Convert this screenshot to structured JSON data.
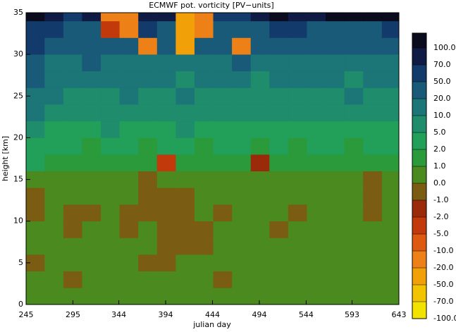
{
  "chart_data": {
    "type": "contour",
    "title": "ECMWF pot. vorticity [PV−units]",
    "xlabel": "julian day",
    "ylabel": "height [km]",
    "xlim": [
      245,
      643
    ],
    "ylim": [
      0,
      35
    ],
    "xticks": [
      245,
      295,
      344,
      394,
      444,
      494,
      544,
      593,
      643
    ],
    "yticks": [
      0,
      5,
      10,
      15,
      20,
      25,
      30,
      35
    ],
    "x": [
      255,
      275,
      295,
      315,
      335,
      355,
      375,
      395,
      415,
      435,
      455,
      475,
      495,
      515,
      535,
      555,
      575,
      595,
      615,
      635
    ],
    "y": [
      1,
      3,
      5,
      7,
      9,
      11,
      13,
      15,
      17,
      19,
      21,
      23,
      25,
      27,
      29,
      31,
      33,
      35
    ],
    "z": [
      [
        0.5,
        0.5,
        0.5,
        0.5,
        0.5,
        0.5,
        0.5,
        0.5,
        0.5,
        0.5,
        0.5,
        0.5,
        0.5,
        0.5,
        0.5,
        0.5,
        0.5,
        0.5,
        0.5,
        0.5
      ],
      [
        0.5,
        0.5,
        -0.5,
        0.5,
        0.5,
        0.5,
        0.5,
        0.5,
        0.5,
        0.5,
        -0.5,
        0.5,
        0.5,
        0.5,
        0.5,
        0.5,
        0.5,
        0.5,
        0.5,
        0.5
      ],
      [
        -0.5,
        0.5,
        0.5,
        0.5,
        0.5,
        0.5,
        -0.5,
        -0.5,
        0.5,
        0.5,
        0.5,
        0.5,
        0.5,
        0.5,
        0.5,
        0.5,
        0.5,
        0.5,
        0.5,
        0.5
      ],
      [
        0.5,
        0.5,
        0.5,
        0.5,
        0.5,
        0.5,
        0.5,
        -0.5,
        -0.5,
        -0.5,
        0.5,
        0.5,
        0.5,
        0.5,
        0.5,
        0.5,
        0.5,
        0.5,
        0.5,
        0.5
      ],
      [
        0.5,
        0.5,
        -0.5,
        0.5,
        0.5,
        -0.5,
        0.5,
        -0.5,
        -0.5,
        -0.5,
        0.5,
        0.5,
        0.5,
        -0.5,
        0.5,
        0.5,
        0.5,
        0.5,
        0.5,
        0.5
      ],
      [
        -0.5,
        0.5,
        -0.5,
        -0.5,
        0.5,
        -0.5,
        -0.5,
        -0.5,
        -0.5,
        0.5,
        -0.5,
        0.5,
        0.5,
        0.5,
        -0.5,
        0.5,
        0.5,
        0.5,
        -0.5,
        0.5
      ],
      [
        -0.5,
        0.5,
        0.5,
        0.5,
        0.5,
        0.5,
        -0.5,
        -0.5,
        -0.5,
        0.5,
        0.5,
        0.5,
        0.5,
        0.5,
        0.5,
        0.5,
        0.5,
        0.5,
        -0.5,
        0.5
      ],
      [
        0.5,
        0.5,
        0.5,
        0.5,
        0.5,
        0.5,
        -0.5,
        0.5,
        0.5,
        0.5,
        0.5,
        0.5,
        0.5,
        0.5,
        0.5,
        0.5,
        0.5,
        0.5,
        -0.5,
        0.5
      ],
      [
        3,
        1.5,
        1.5,
        1.5,
        1.5,
        1.5,
        1.5,
        -3,
        1.5,
        1.5,
        1.5,
        1.5,
        -1.5,
        1.5,
        1.5,
        1.5,
        1.5,
        1.5,
        1.5,
        1.5
      ],
      [
        3,
        3,
        3,
        1.5,
        3,
        3,
        1.5,
        3,
        3,
        1.5,
        3,
        3,
        1.5,
        3,
        1.5,
        3,
        3,
        1.5,
        3,
        3
      ],
      [
        7,
        3,
        3,
        3,
        7,
        3,
        3,
        3,
        7,
        3,
        3,
        3,
        3,
        3,
        3,
        3,
        3,
        3,
        3,
        3
      ],
      [
        15,
        7,
        7,
        7,
        7,
        7,
        7,
        7,
        7,
        7,
        7,
        7,
        7,
        7,
        7,
        7,
        7,
        7,
        7,
        7
      ],
      [
        15,
        15,
        7,
        7,
        7,
        15,
        7,
        7,
        15,
        7,
        7,
        7,
        7,
        7,
        7,
        7,
        7,
        15,
        7,
        7
      ],
      [
        30,
        15,
        15,
        15,
        15,
        15,
        15,
        15,
        7,
        15,
        15,
        15,
        7,
        15,
        15,
        15,
        15,
        7,
        15,
        15
      ],
      [
        30,
        15,
        15,
        30,
        15,
        15,
        15,
        15,
        15,
        15,
        15,
        30,
        15,
        15,
        15,
        15,
        15,
        15,
        15,
        15
      ],
      [
        60,
        30,
        30,
        30,
        30,
        30,
        -15,
        30,
        -30,
        30,
        30,
        -15,
        30,
        30,
        30,
        30,
        30,
        30,
        30,
        30
      ],
      [
        60,
        60,
        30,
        30,
        -5,
        -15,
        60,
        30,
        -30,
        -20,
        30,
        30,
        30,
        60,
        60,
        30,
        30,
        30,
        30,
        60
      ],
      [
        120,
        85,
        60,
        85,
        -15,
        -15,
        85,
        85,
        -30,
        -15,
        60,
        60,
        85,
        120,
        85,
        85,
        120,
        120,
        120,
        120
      ]
    ],
    "colorbar_ticks": [
      {
        "value": 100,
        "label": "100.0"
      },
      {
        "value": 70,
        "label": "70.0"
      },
      {
        "value": 50,
        "label": "50.0"
      },
      {
        "value": 20,
        "label": "20.0"
      },
      {
        "value": 10,
        "label": "10.0"
      },
      {
        "value": 5,
        "label": "5.0"
      },
      {
        "value": 2,
        "label": "2.0"
      },
      {
        "value": 1,
        "label": "1.0"
      },
      {
        "value": 0,
        "label": "0.0"
      },
      {
        "value": -1,
        "label": "-1.0"
      },
      {
        "value": -2,
        "label": "-2.0"
      },
      {
        "value": -5,
        "label": "-5.0"
      },
      {
        "value": -10,
        "label": "-10.0"
      },
      {
        "value": -20,
        "label": "-20.0"
      },
      {
        "value": -50,
        "label": "-50.0"
      },
      {
        "value": -70,
        "label": "-70.0"
      },
      {
        "value": -100,
        "label": "-100.0"
      }
    ],
    "colors": [
      "#0b0b1e",
      "#0f1b45",
      "#123a6a",
      "#195a78",
      "#1c7577",
      "#1f8c6c",
      "#22a05a",
      "#2a9a3a",
      "#4a8a1e",
      "#7a5c12",
      "#9a2a0a",
      "#c23a0c",
      "#de5a10",
      "#ee8018",
      "#f2a008",
      "#f2c400",
      "#f2e200"
    ]
  }
}
